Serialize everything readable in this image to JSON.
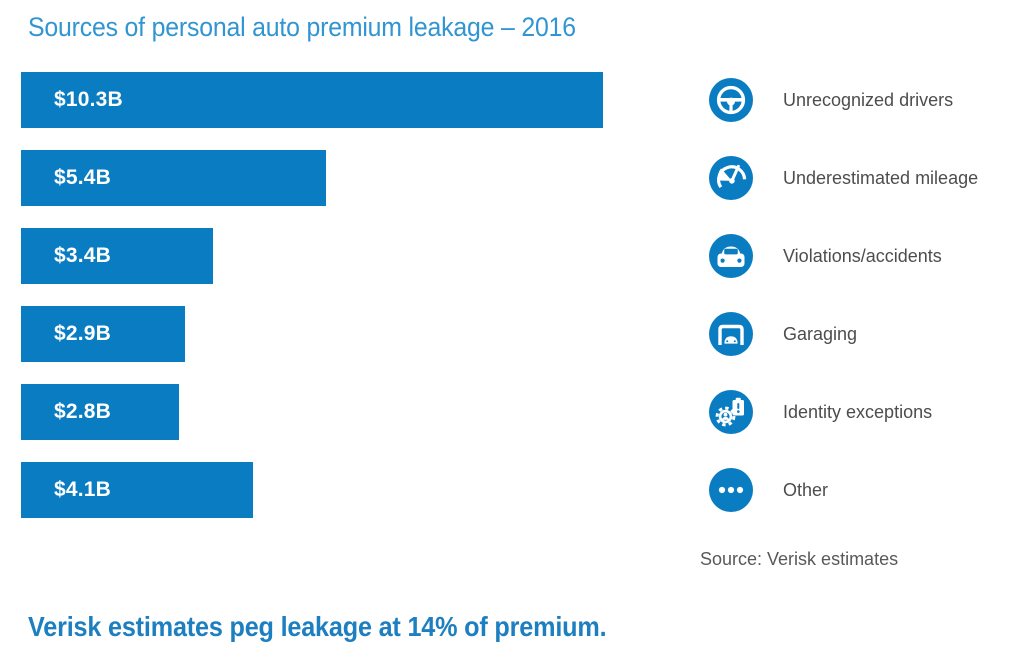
{
  "title": "Sources of personal auto premium leakage – 2016",
  "headline": "Verisk estimates peg leakage at 14% of premium.",
  "source": "Source: Verisk estimates",
  "colors": {
    "bar_blue": "#0a7dc2",
    "title_blue": "#3095d2",
    "headline_blue": "#1d7fc0",
    "legend_text": "#4d4d4f",
    "source_text": "#59595b",
    "bar_label": "#ffffff"
  },
  "chart_data": {
    "type": "bar",
    "orientation": "horizontal",
    "title": "Sources of personal auto premium leakage – 2016",
    "categories": [
      "Unrecognized drivers",
      "Underestimated mileage",
      "Violations/accidents",
      "Garaging",
      "Identity exceptions",
      "Other"
    ],
    "values": [
      10.3,
      5.4,
      3.4,
      2.9,
      2.8,
      4.1
    ],
    "value_labels": [
      "$10.3B",
      "$5.4B",
      "$3.4B",
      "$2.9B",
      "$2.8B",
      "$4.1B"
    ],
    "unit": "billions USD",
    "xlim": [
      0,
      10.3
    ],
    "grid": false,
    "axis_labels": false,
    "legend_position": "right",
    "annotation": "Verisk estimates peg leakage at 14% of premium.",
    "source": "Source: Verisk estimates"
  },
  "legend": {
    "items": [
      {
        "icon": "steering-wheel-icon",
        "label": "Unrecognized drivers"
      },
      {
        "icon": "gauge-icon",
        "label": "Underestimated mileage"
      },
      {
        "icon": "car-icon",
        "label": "Violations/accidents"
      },
      {
        "icon": "garage-icon",
        "label": "Garaging"
      },
      {
        "icon": "gear-clipboard-icon",
        "label": "Identity exceptions"
      },
      {
        "icon": "ellipsis-icon",
        "label": "Other"
      }
    ]
  }
}
